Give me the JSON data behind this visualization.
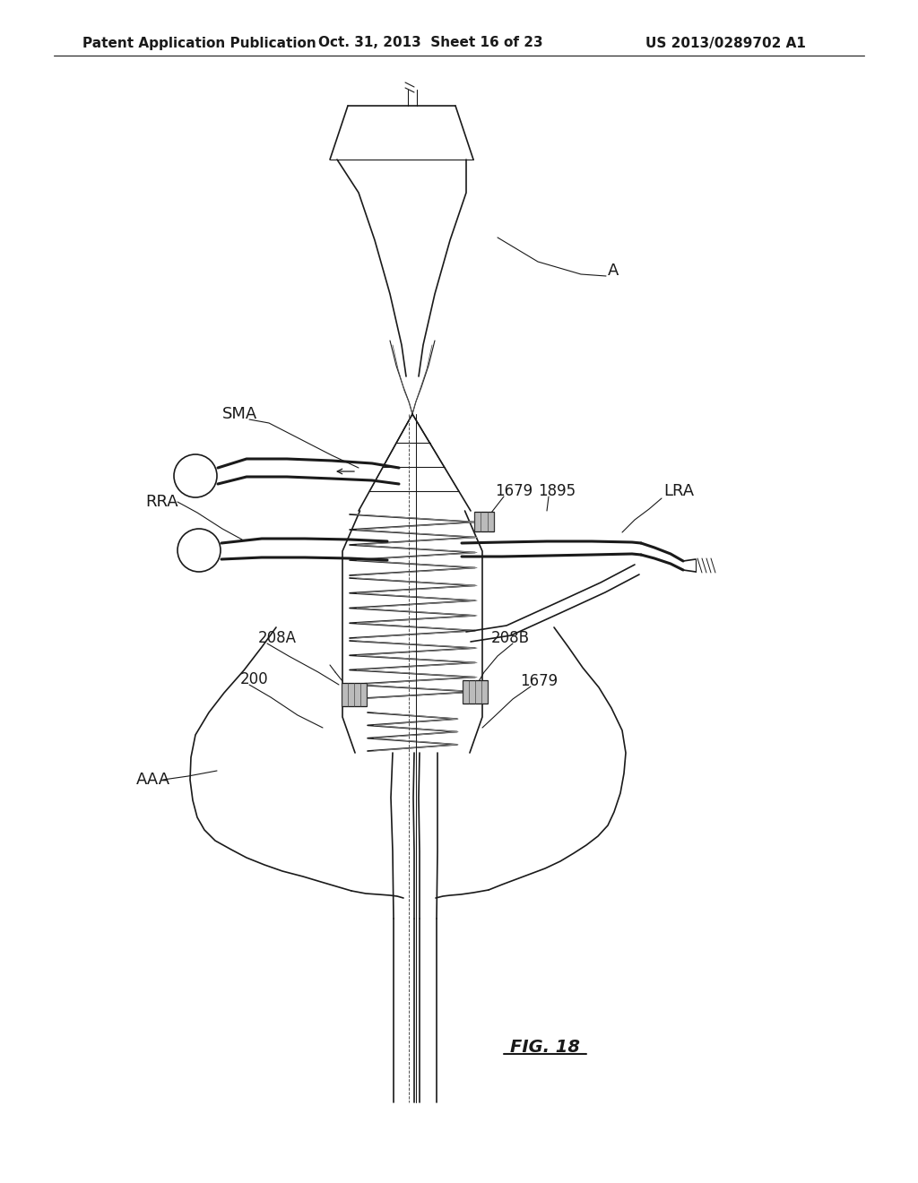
{
  "header_left": "Patent Application Publication",
  "header_mid": "Oct. 31, 2013  Sheet 16 of 23",
  "header_right": "US 2013/0289702 A1",
  "figure_label": "FIG. 18",
  "bg_color": "#ffffff",
  "line_color": "#1a1a1a",
  "header_fontsize": 11,
  "label_fontsize": 13,
  "page_width": 10.24,
  "page_height": 13.2
}
